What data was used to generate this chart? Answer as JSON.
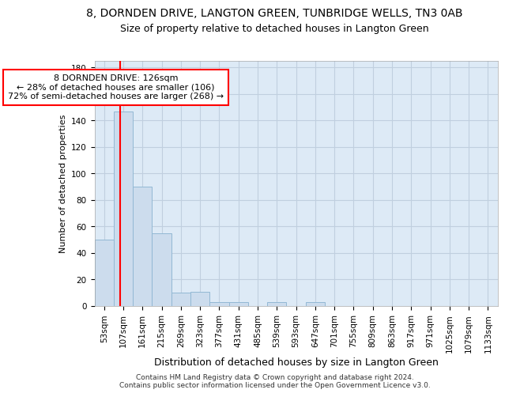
{
  "title": "8, DORNDEN DRIVE, LANGTON GREEN, TUNBRIDGE WELLS, TN3 0AB",
  "subtitle": "Size of property relative to detached houses in Langton Green",
  "xlabel": "Distribution of detached houses by size in Langton Green",
  "ylabel": "Number of detached properties",
  "footer_line1": "Contains HM Land Registry data © Crown copyright and database right 2024.",
  "footer_line2": "Contains public sector information licensed under the Open Government Licence v3.0.",
  "bar_color": "#ccdced",
  "bar_edge_color": "#92b8d4",
  "grid_color": "#c0cfdf",
  "background_color": "#ddeaf6",
  "annotation_text": "8 DORNDEN DRIVE: 126sqm\n← 28% of detached houses are smaller (106)\n72% of semi-detached houses are larger (268) →",
  "annotation_box_color": "white",
  "annotation_box_edge_color": "red",
  "vline_x": 126,
  "vline_color": "red",
  "categories": [
    "53sqm",
    "107sqm",
    "161sqm",
    "215sqm",
    "269sqm",
    "323sqm",
    "377sqm",
    "431sqm",
    "485sqm",
    "539sqm",
    "593sqm",
    "647sqm",
    "701sqm",
    "755sqm",
    "809sqm",
    "863sqm",
    "917sqm",
    "971sqm",
    "1025sqm",
    "1079sqm",
    "1133sqm"
  ],
  "values": [
    50,
    147,
    90,
    55,
    10,
    11,
    3,
    3,
    0,
    3,
    0,
    3,
    0,
    0,
    0,
    0,
    0,
    0,
    0,
    0,
    0
  ],
  "bin_edges": [
    53,
    107,
    161,
    215,
    269,
    323,
    377,
    431,
    485,
    539,
    593,
    647,
    701,
    755,
    809,
    863,
    917,
    971,
    1025,
    1079,
    1133,
    1187
  ],
  "ylim": [
    0,
    185
  ],
  "yticks": [
    0,
    20,
    40,
    60,
    80,
    100,
    120,
    140,
    160,
    180
  ],
  "title_fontsize": 10,
  "subtitle_fontsize": 9,
  "xlabel_fontsize": 9,
  "ylabel_fontsize": 8,
  "tick_fontsize": 7.5,
  "footer_fontsize": 6.5,
  "annot_fontsize": 8
}
